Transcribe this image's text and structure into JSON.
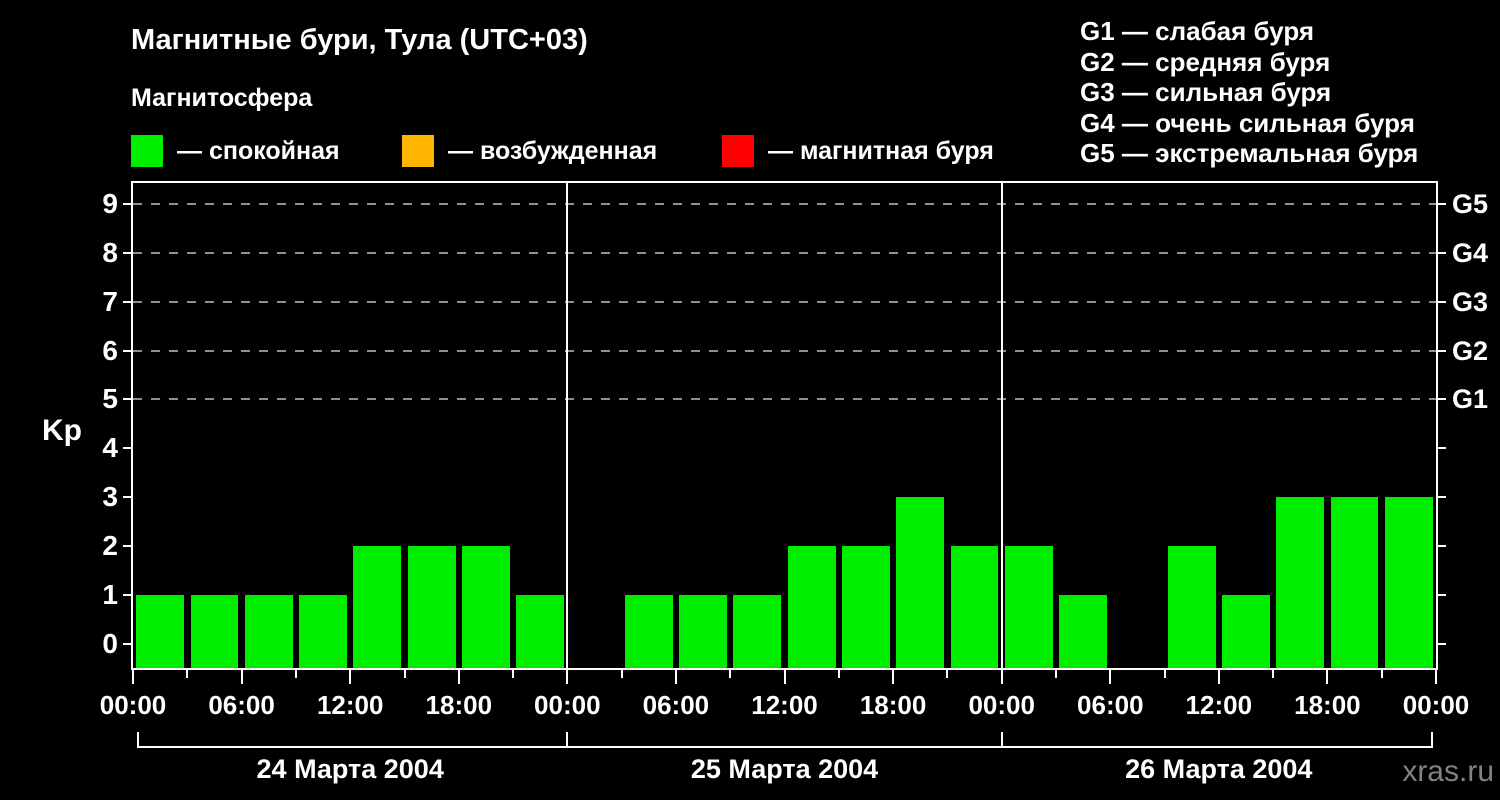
{
  "header": {
    "title": "Магнитные бури, Тула (UTC+03)",
    "subtitle": "Магнитосфера"
  },
  "legend": {
    "items": [
      {
        "name": "quiet",
        "label": "— спокойная",
        "color": "#00ed00"
      },
      {
        "name": "excited",
        "label": "— возбужденная",
        "color": "#ffb400"
      },
      {
        "name": "storm",
        "label": "— магнитная буря",
        "color": "#ff0000"
      }
    ]
  },
  "storm_scale": [
    "G1 — слабая буря",
    "G2 — средняя буря",
    "G3 — сильная буря",
    "G4 — очень сильная буря",
    "G5 — экстремальная буря"
  ],
  "watermark": "xras.ru",
  "chart_data": {
    "type": "bar",
    "title": "Магнитные бури, Тула (UTC+03)",
    "ylabel": "Kp",
    "ylim": [
      0,
      9
    ],
    "yticks": [
      0,
      1,
      2,
      3,
      4,
      5,
      6,
      7,
      8,
      9
    ],
    "grid_dashed_levels": [
      5,
      6,
      7,
      8,
      9
    ],
    "right_axis": [
      {
        "kp": 5,
        "label": "G1"
      },
      {
        "kp": 6,
        "label": "G2"
      },
      {
        "kp": 7,
        "label": "G3"
      },
      {
        "kp": 8,
        "label": "G4"
      },
      {
        "kp": 9,
        "label": "G5"
      }
    ],
    "slot_hours": 3,
    "x_tick_labels": [
      "00:00",
      "06:00",
      "12:00",
      "18:00",
      "00:00",
      "06:00",
      "12:00",
      "18:00",
      "00:00",
      "06:00",
      "12:00",
      "18:00",
      "00:00"
    ],
    "bar_color": "#00ed00",
    "days": [
      {
        "date": "24 Марта 2004",
        "values": [
          1,
          1,
          1,
          1,
          2,
          2,
          2,
          1
        ]
      },
      {
        "date": "25 Марта 2004",
        "values": [
          null,
          1,
          1,
          1,
          2,
          2,
          3,
          2
        ]
      },
      {
        "date": "26 Марта 2004",
        "values": [
          2,
          1,
          null,
          2,
          1,
          3,
          3,
          3
        ]
      }
    ]
  }
}
